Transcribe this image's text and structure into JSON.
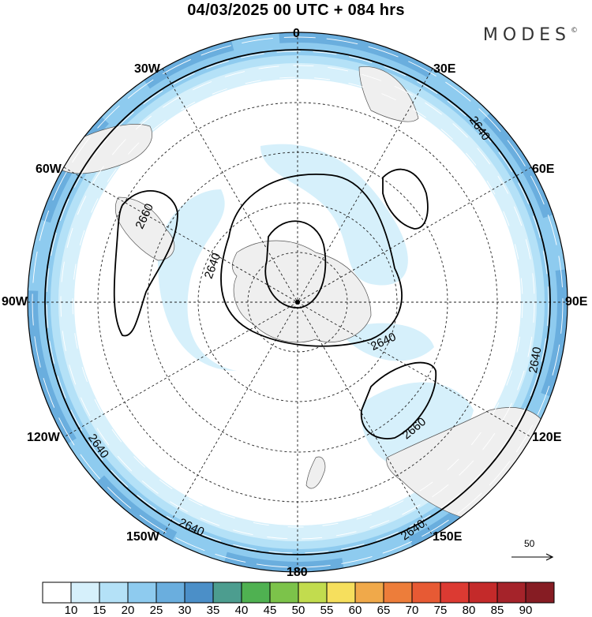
{
  "title": "04/03/2025  00 UTC  + 084 hrs",
  "brand": {
    "text": "MODES",
    "mark": "©"
  },
  "longitude_labels": {
    "n": "0",
    "s": "180",
    "e": "90E",
    "w": "90W",
    "e30": "30E",
    "e60": "60E",
    "e120": "120E",
    "e150": "150E",
    "w30": "30W",
    "w60": "60W",
    "w120": "120W",
    "w150": "150W"
  },
  "contour_labels": {
    "c1": "2640",
    "c2": "2640",
    "c3": "2640",
    "c4": "2640",
    "c5": "2640",
    "c6": "2640",
    "c7": "2660",
    "c8": "2660"
  },
  "reference_vector": "50",
  "colorbar": {
    "labels": [
      "10",
      "15",
      "20",
      "25",
      "30",
      "35",
      "40",
      "45",
      "50",
      "55",
      "60",
      "65",
      "70",
      "75",
      "80",
      "85",
      "90"
    ],
    "colors": [
      "#ffffff",
      "#d6f0fb",
      "#b4e1f7",
      "#8ecbef",
      "#6aaede",
      "#4b8fc8",
      "#4c9d8f",
      "#4fb151",
      "#7cc34a",
      "#c2dc4e",
      "#f6df5d",
      "#f0a94a",
      "#ed7d3a",
      "#e75a34",
      "#dc3a32",
      "#c42a2a",
      "#a5232a",
      "#861c23"
    ]
  }
}
